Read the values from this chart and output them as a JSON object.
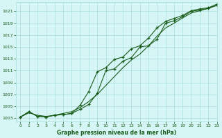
{
  "title": "Graphe pression niveau de la mer (hPa)",
  "bg_color": "#d6f5f5",
  "grid_color": "#aadddd",
  "line_color": "#1a5c1a",
  "marker_color": "#1a5c1a",
  "xlim": [
    -0.5,
    23
  ],
  "ylim": [
    1002.5,
    1022.5
  ],
  "yticks": [
    1003,
    1005,
    1007,
    1009,
    1011,
    1013,
    1015,
    1017,
    1019,
    1021
  ],
  "xticks": [
    0,
    1,
    2,
    3,
    4,
    5,
    6,
    7,
    8,
    9,
    10,
    11,
    12,
    13,
    14,
    15,
    16,
    17,
    18,
    19,
    20,
    21,
    22,
    23
  ],
  "series1_x": [
    0,
    1,
    2,
    3,
    4,
    5,
    6,
    7,
    8,
    9,
    10,
    11,
    12,
    13,
    14,
    15,
    16,
    17,
    18,
    19,
    20,
    21,
    22,
    23
  ],
  "series1_y": [
    1003.2,
    1004.1,
    1003.3,
    1003.2,
    1003.5,
    1003.6,
    1003.8,
    1004.5,
    1005.3,
    1007.2,
    1011.0,
    1011.3,
    1012.6,
    1013.2,
    1015.0,
    1015.2,
    1016.3,
    1019.0,
    1019.4,
    1020.1,
    1021.0,
    1021.2,
    1021.5,
    1022.0
  ],
  "series2_x": [
    0,
    1,
    2,
    3,
    4,
    5,
    6,
    7,
    8,
    9,
    10,
    11,
    12,
    13,
    14,
    15,
    16,
    17,
    18,
    19,
    20,
    21,
    22,
    23
  ],
  "series2_y": [
    1003.2,
    1004.1,
    1003.3,
    1003.2,
    1003.5,
    1003.6,
    1003.8,
    1005.2,
    1007.5,
    1010.8,
    1011.5,
    1012.9,
    1013.3,
    1014.7,
    1015.2,
    1016.5,
    1018.2,
    1019.3,
    1019.8,
    1020.3,
    1021.1,
    1021.4,
    1021.6,
    1022.2
  ],
  "series3_x": [
    0,
    1,
    2,
    3,
    4,
    5,
    6,
    7,
    8,
    9,
    10,
    11,
    12,
    13,
    14,
    15,
    16,
    17,
    18,
    19,
    20,
    21,
    22,
    23
  ],
  "series3_y": [
    1003.2,
    1003.9,
    1003.5,
    1003.3,
    1003.5,
    1003.8,
    1004.1,
    1004.8,
    1005.8,
    1007.0,
    1008.5,
    1010.0,
    1011.5,
    1012.8,
    1013.8,
    1015.2,
    1016.8,
    1018.2,
    1019.0,
    1019.9,
    1020.7,
    1021.1,
    1021.5,
    1022.0
  ]
}
